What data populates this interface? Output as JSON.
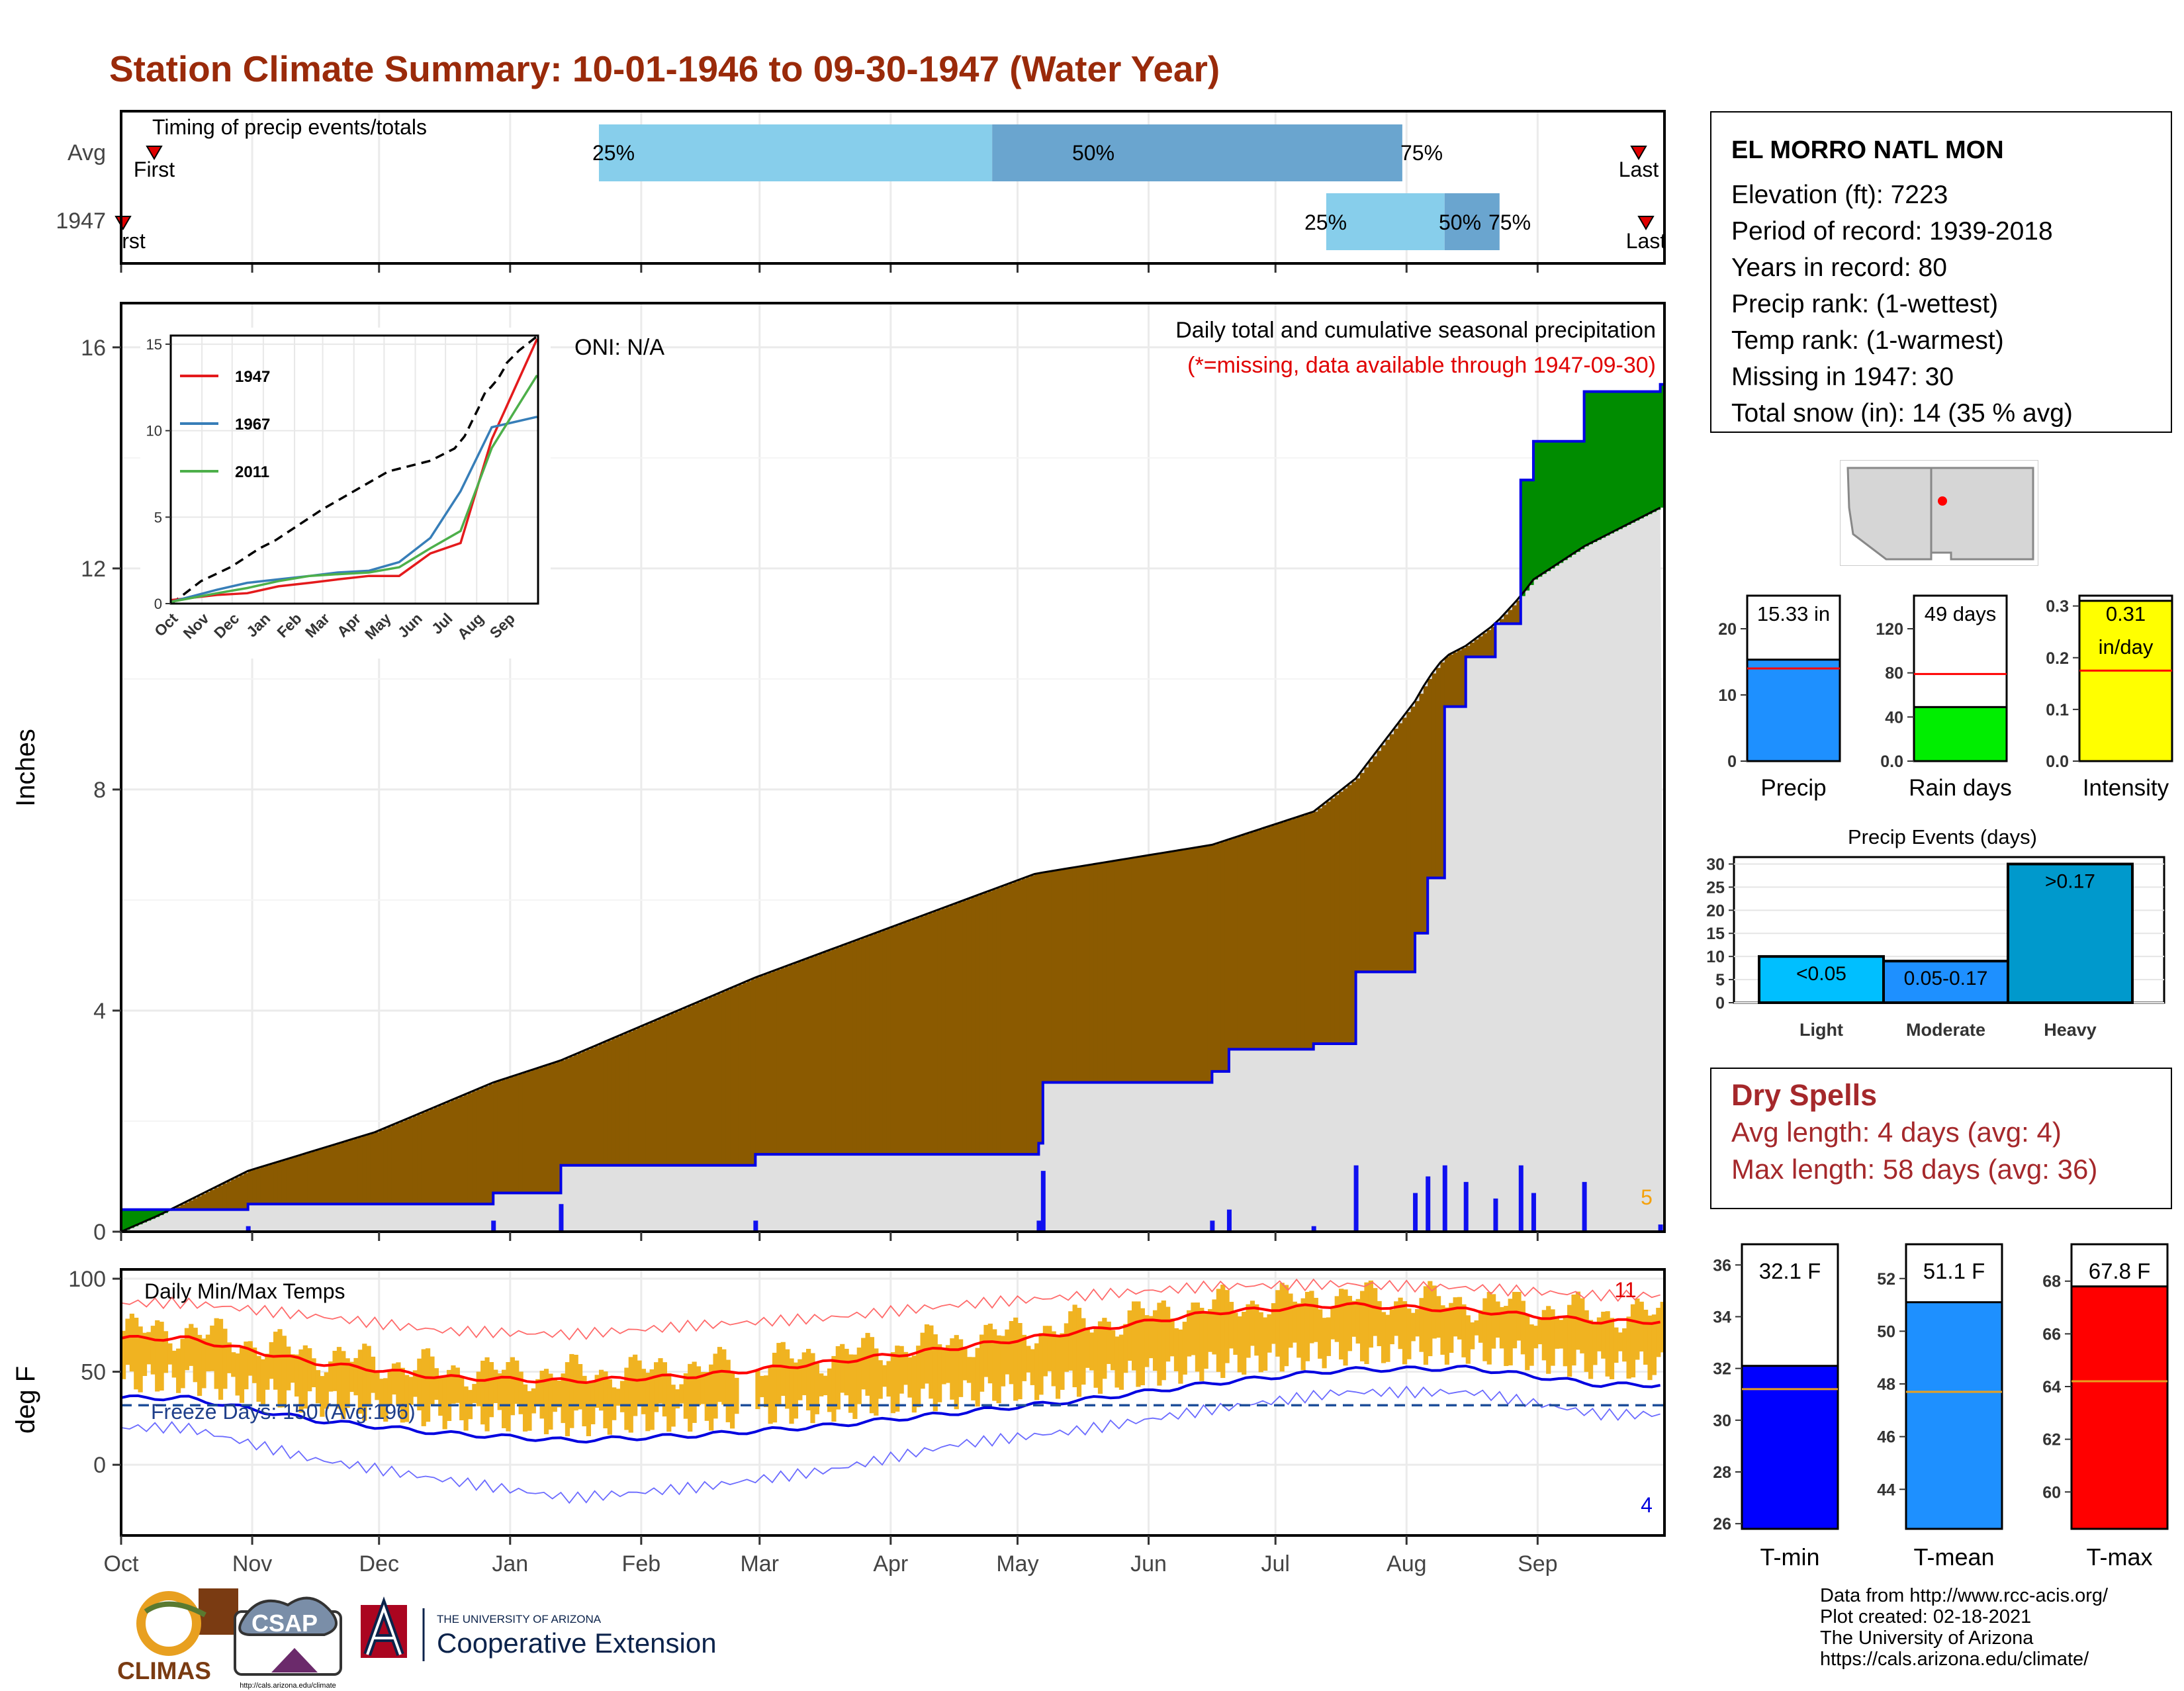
{
  "title": "Station Climate Summary: 10-01-1946 to 09-30-1947 (Water Year)",
  "colors": {
    "title": "#9a2a0a",
    "precip_deficit": "#8b5a00",
    "precip_surplus": "#008c00",
    "climatology": "#e0e0e0",
    "bars": "#1010f0",
    "pct_light": "#87ceeb",
    "pct_dark": "#6aa5cf",
    "temp_bars": "#f0b321",
    "dry_spell": "#a5282b"
  },
  "timing": {
    "title": "Timing of precip events/totals",
    "rows": [
      {
        "label": "Avg",
        "first_label": "First",
        "last_label": "Last",
        "p25": "25%",
        "p50": "50%",
        "p75": "75%"
      },
      {
        "label": "1947",
        "first_label": "rst",
        "last_label": "Last",
        "p25": "25%",
        "p50": "50%",
        "p75": "75%"
      }
    ]
  },
  "precip": {
    "ylabel": "Inches",
    "oni": "ONI: N/A",
    "caption1": "Daily total and cumulative seasonal precipitation",
    "caption2": "(*=missing, data available through 1947-09-30)",
    "corner_count": "5",
    "y_ticks": [
      "0",
      "4",
      "8",
      "12",
      "16"
    ]
  },
  "temps": {
    "title": "Daily Min/Max Temps",
    "ylabel": "deg F",
    "freeze": "Freeze Days: 150 (Avg:196)",
    "max_count": "11",
    "min_count": "4",
    "y_ticks": [
      "0",
      "50",
      "100"
    ]
  },
  "months": [
    "Oct",
    "Nov",
    "Dec",
    "Jan",
    "Feb",
    "Mar",
    "Apr",
    "May",
    "Jun",
    "Jul",
    "Aug",
    "Sep"
  ],
  "inset": {
    "y_ticks": [
      "0",
      "5",
      "10",
      "15"
    ],
    "months": [
      "Oct",
      "Nov",
      "Dec",
      "Jan",
      "Feb",
      "Mar",
      "Apr",
      "May",
      "Jun",
      "Jul",
      "Aug",
      "Sep"
    ],
    "legend": [
      {
        "name": "1947",
        "color": "#e41a1c"
      },
      {
        "name": "1967",
        "color": "#377eb8"
      },
      {
        "name": "2011",
        "color": "#4daf4a"
      }
    ]
  },
  "station": {
    "name": "EL MORRO NATL MON",
    "lines": [
      "Elevation (ft): 7223",
      "Period of record: 1939-2018",
      "Years in record: 80",
      "Precip rank:  (1-wettest)",
      "Temp rank:  (1-warmest)",
      "Missing in 1947: 30",
      "Total snow (in): 14 (35 % avg)"
    ]
  },
  "mini_bars": [
    {
      "label": "Precip",
      "value_text": "15.33 in",
      "value": 15.33,
      "avg": 14,
      "ticks": [
        "0",
        "10",
        "20"
      ],
      "ymax": 25,
      "color": "#1e90ff"
    },
    {
      "label": "Rain days",
      "value_text": "49 days",
      "value": 49,
      "avg": 79,
      "ticks": [
        "0.0",
        "40",
        "80",
        "120"
      ],
      "ymax": 150,
      "color": "#00ee00"
    },
    {
      "label": "Intensity",
      "value_text": "0.31",
      "value_text2": "in/day",
      "value": 0.31,
      "avg": 0.175,
      "ticks": [
        "0.0",
        "0.1",
        "0.2",
        "0.3"
      ],
      "ymax": 0.32,
      "color": "#ffff00"
    }
  ],
  "events": {
    "title": "Precip Events (days)",
    "categories": [
      "Light",
      "Moderate",
      "Heavy"
    ],
    "bar_labels": [
      "<0.05",
      "0.05-0.17",
      ">0.17"
    ],
    "values": [
      10,
      9,
      30
    ],
    "ticks": [
      "0",
      "5",
      "10",
      "15",
      "20",
      "25",
      "30"
    ],
    "colors": [
      "#00bfff",
      "#1e90ff",
      "#0099cc"
    ]
  },
  "dry_spells": {
    "title": "Dry Spells",
    "avg_length": "Avg length: 4 days (avg: 4)",
    "max_length": "Max length: 58 days (avg: 36)"
  },
  "temp_bars": [
    {
      "label": "T-min",
      "value_text": "32.1 F",
      "value": 32.1,
      "avg": 31.2,
      "ticks": [
        "26",
        "28",
        "30",
        "32",
        "34",
        "36"
      ],
      "ymin": 25.8,
      "ymax": 36.8,
      "color": "#0000ff"
    },
    {
      "label": "T-mean",
      "value_text": "51.1 F",
      "value": 51.1,
      "avg": 47.7,
      "ticks": [
        "44",
        "46",
        "48",
        "50",
        "52"
      ],
      "ymin": 42.5,
      "ymax": 53.3,
      "color": "#1e90ff"
    },
    {
      "label": "T-max",
      "value_text": "67.8 F",
      "value": 67.8,
      "avg": 64.2,
      "ticks": [
        "60",
        "62",
        "64",
        "66",
        "68"
      ],
      "ymin": 58.6,
      "ymax": 69.4,
      "color": "#ff0000"
    }
  ],
  "credits": [
    "Data from http://www.rcc-acis.org/",
    "Plot created: 02-18-2021",
    "The University of Arizona",
    "https://cals.arizona.edu/climate/"
  ],
  "logos": {
    "climas": "CLIMAS",
    "csap": "CSAP",
    "csap_url": "http://cals.arizona.edu/climate",
    "ua_small": "THE UNIVERSITY OF ARIZONA",
    "ua_big": "Cooperative Extension"
  },
  "chart_data": [
    {
      "type": "bar",
      "title": "Timing of precip events/totals",
      "categories": [
        "Avg",
        "1947"
      ],
      "series": [
        {
          "name": "25%",
          "values": [
            "Jan 22",
            "Jul 13"
          ]
        },
        {
          "name": "50%",
          "values": [
            "Apr 25",
            "Aug 10"
          ]
        },
        {
          "name": "75%",
          "values": [
            "Jul 31",
            "Aug 23"
          ]
        }
      ]
    },
    {
      "type": "area",
      "title": "Daily total and cumulative seasonal precipitation",
      "ylabel": "Inches",
      "ylim": [
        0,
        16.8
      ],
      "x": [
        "Oct 1",
        "Oct 10",
        "Oct 31",
        "Nov 30",
        "Dec 28",
        "Jan 13",
        "Feb 28",
        "May 6",
        "May 7",
        "Jun 16",
        "Jun 20",
        "Jul 10",
        "Jul 20",
        "Aug 3",
        "Aug 6",
        "Aug 10",
        "Aug 15",
        "Aug 22",
        "Aug 28",
        "Aug 31",
        "Sep 12",
        "Sep 30"
      ],
      "series": [
        {
          "name": "1947",
          "values": [
            0.4,
            0.4,
            0.5,
            0.5,
            0.7,
            1.2,
            1.4,
            1.6,
            2.7,
            2.9,
            3.3,
            3.4,
            4.7,
            5.4,
            6.4,
            9.5,
            10.4,
            11.0,
            13.6,
            14.3,
            15.2,
            15.33
          ]
        },
        {
          "name": "Average",
          "values": [
            0.0,
            0.3,
            1.1,
            1.8,
            2.7,
            3.1,
            4.6,
            6.5,
            6.5,
            7.0,
            7.1,
            7.6,
            8.2,
            9.6,
            10.0,
            10.4,
            10.6,
            11.0,
            11.5,
            11.8,
            12.4,
            13.1
          ]
        }
      ]
    },
    {
      "type": "line",
      "title": "Daily Min/Max Temps",
      "ylabel": "deg F",
      "ylim": [
        -38,
        105
      ],
      "categories": [
        "Oct",
        "Nov",
        "Dec",
        "Jan",
        "Feb",
        "Mar",
        "Apr",
        "May",
        "Jun",
        "Jul",
        "Aug",
        "Sep"
      ],
      "series": [
        {
          "name": "Avg max",
          "values": [
            68,
            55,
            47,
            45,
            48,
            55,
            63,
            72,
            82,
            86,
            83,
            77
          ]
        },
        {
          "name": "Avg min",
          "values": [
            36,
            24,
            17,
            13,
            16,
            21,
            28,
            35,
            44,
            51,
            52,
            43
          ]
        },
        {
          "name": "Record max",
          "values": [
            87,
            80,
            72,
            70,
            75,
            79,
            86,
            91,
            96,
            97,
            95,
            91
          ]
        },
        {
          "name": "Record min",
          "values": [
            20,
            3,
            -8,
            -18,
            -12,
            -3,
            11,
            19,
            30,
            39,
            39,
            27
          ]
        }
      ]
    },
    {
      "type": "line",
      "legend": [
        "1947",
        "1967",
        "2011"
      ],
      "categories": [
        "Oct",
        "Nov",
        "Dec",
        "Jan",
        "Feb",
        "Mar",
        "Apr",
        "May",
        "Jun",
        "Jul",
        "Aug",
        "Sep"
      ],
      "ylim": [
        0,
        15.5
      ],
      "series": [
        {
          "name": "1947",
          "values": [
            0.2,
            0.5,
            0.6,
            1.0,
            1.2,
            1.4,
            1.6,
            1.6,
            2.9,
            3.5,
            9.5,
            15.3
          ]
        },
        {
          "name": "1967",
          "values": [
            0.1,
            0.8,
            1.2,
            1.4,
            1.6,
            1.8,
            1.9,
            2.4,
            3.8,
            6.5,
            10.2,
            10.8
          ]
        },
        {
          "name": "2011",
          "values": [
            0.1,
            0.6,
            0.9,
            1.3,
            1.6,
            1.7,
            1.8,
            2.1,
            3.2,
            4.2,
            9.0,
            13.2
          ]
        }
      ]
    },
    {
      "type": "bar",
      "title": "Precip Events (days)",
      "categories": [
        "Light",
        "Moderate",
        "Heavy"
      ],
      "values": [
        10,
        9,
        30
      ]
    },
    {
      "type": "bar",
      "categories": [
        "Precip",
        "Rain days",
        "Intensity"
      ],
      "values": [
        15.33,
        49,
        0.31
      ]
    },
    {
      "type": "bar",
      "categories": [
        "T-min",
        "T-mean",
        "T-max"
      ],
      "values": [
        32.1,
        51.1,
        67.8
      ]
    }
  ]
}
